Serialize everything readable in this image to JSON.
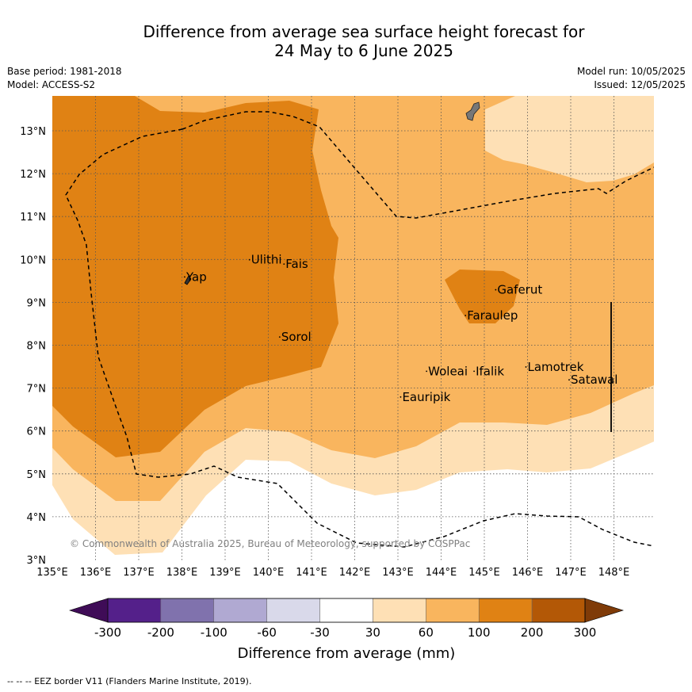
{
  "title_line1": "Difference from average sea surface height forecast for",
  "title_line2": "24 May to 6 June 2025",
  "base_period": "Base period: 1981-2018",
  "model": "Model: ACCESS-S2",
  "model_run": "Model run: 10/05/2025",
  "issued": "Issued: 12/05/2025",
  "copyright": "© Commonwealth of Australia 2025, Bureau of Meteorology, supported by COSPPac",
  "footnote": "--  --  -- EEZ border V11 (Flanders Marine Institute, 2019).",
  "map": {
    "lon_range": [
      135,
      149
    ],
    "lat_range": [
      3,
      14
    ],
    "lon_ticks": [
      "135°E",
      "136°E",
      "137°E",
      "138°E",
      "139°E",
      "140°E",
      "141°E",
      "142°E",
      "143°E",
      "144°E",
      "145°E",
      "146°E",
      "147°E",
      "148°E"
    ],
    "lat_ticks": [
      "3°N",
      "4°N",
      "5°N",
      "6°N",
      "7°N",
      "8°N",
      "9°N",
      "10°N",
      "11°N",
      "12°N",
      "13°N"
    ],
    "places": [
      {
        "name": "Yap",
        "lon": 138.1,
        "lat": 9.5
      },
      {
        "name": "Ulithi",
        "lon": 139.6,
        "lat": 9.9
      },
      {
        "name": "Fais",
        "lon": 140.4,
        "lat": 9.8
      },
      {
        "name": "Sorol",
        "lon": 140.3,
        "lat": 8.1
      },
      {
        "name": "Gaferut",
        "lon": 145.3,
        "lat": 9.2
      },
      {
        "name": "Faraulep",
        "lon": 144.6,
        "lat": 8.6
      },
      {
        "name": "Woleai",
        "lon": 143.7,
        "lat": 7.3
      },
      {
        "name": "Ifalik",
        "lon": 144.8,
        "lat": 7.3
      },
      {
        "name": "Lamotrek",
        "lon": 146.0,
        "lat": 7.4
      },
      {
        "name": "Satawal",
        "lon": 147.0,
        "lat": 7.1
      },
      {
        "name": "Eauripik",
        "lon": 143.1,
        "lat": 6.7
      }
    ]
  },
  "colorbar": {
    "title": "Difference from average (mm)",
    "labels": [
      "-300",
      "-200",
      "-100",
      "-60",
      "-30",
      "30",
      "60",
      "100",
      "200",
      "300"
    ],
    "colors": [
      "#3f0c57",
      "#54208a",
      "#8072ad",
      "#b0a9d2",
      "#d9d9ea",
      "#ffffff",
      "#fee0b5",
      "#f9b55e",
      "#e08214",
      "#b35806",
      "#7f3b08"
    ],
    "under_color": "#3f0c57",
    "over_color": "#7f3b08"
  },
  "fill_colors": {
    "c30": "#fee0b5",
    "c60": "#f9b55e",
    "c100": "#e08214"
  }
}
